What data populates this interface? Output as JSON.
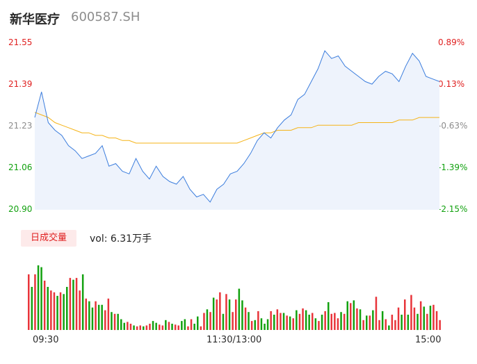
{
  "header": {
    "name": "新华医疗",
    "code": "600587.SH"
  },
  "price_axis": [
    "21.55",
    "21.39",
    "21.23",
    "21.06",
    "20.90"
  ],
  "pct_axis": [
    "0.89%",
    "0.13%",
    "-0.63%",
    "-1.39%",
    "-2.15%"
  ],
  "volume": {
    "tab_label": "日成交量",
    "vol_text": "vol: 6.31万手"
  },
  "time_axis": [
    "09:30",
    "11:30/13:00",
    "15:00"
  ],
  "colors": {
    "price_line": "#3b7ddd",
    "avg_line": "#f5b316",
    "area": "#eef3fc",
    "up": "#e8343a",
    "down": "#12a10f",
    "up_text": "#e02020",
    "down_text": "#12a10f"
  },
  "chart_data": [
    {
      "type": "line",
      "title": "",
      "ylim": [
        20.9,
        21.55
      ],
      "series": [
        {
          "values": [
            21.26,
            21.36,
            21.24,
            21.21,
            21.19,
            21.15,
            21.13,
            21.1,
            21.11,
            21.12,
            21.15,
            21.07,
            21.08,
            21.05,
            21.04,
            21.1,
            21.05,
            21.02,
            21.07,
            21.03,
            21.01,
            21.0,
            21.03,
            20.98,
            20.95,
            20.96,
            20.93,
            20.98,
            21.0,
            21.04,
            21.05,
            21.08,
            21.12,
            21.17,
            21.2,
            21.18,
            21.22,
            21.25,
            21.27,
            21.33,
            21.35,
            21.4,
            21.45,
            21.52,
            21.49,
            21.5,
            21.46,
            21.44,
            21.42,
            21.4,
            21.39,
            21.42,
            21.44,
            21.43,
            21.4,
            21.46,
            21.51,
            21.48,
            21.42,
            21.41,
            21.4
          ]
        },
        {
          "values": [
            21.28,
            21.27,
            21.26,
            21.24,
            21.23,
            21.22,
            21.21,
            21.2,
            21.2,
            21.19,
            21.19,
            21.18,
            21.18,
            21.17,
            21.17,
            21.16,
            21.16,
            21.16,
            21.16,
            21.16,
            21.16,
            21.16,
            21.16,
            21.16,
            21.16,
            21.16,
            21.16,
            21.16,
            21.16,
            21.16,
            21.16,
            21.17,
            21.18,
            21.19,
            21.2,
            21.2,
            21.21,
            21.21,
            21.21,
            21.22,
            21.22,
            21.22,
            21.23,
            21.23,
            21.23,
            21.23,
            21.23,
            21.23,
            21.24,
            21.24,
            21.24,
            21.24,
            21.24,
            21.24,
            21.25,
            21.25,
            21.25,
            21.26,
            21.26,
            21.26,
            21.26
          ]
        }
      ]
    },
    {
      "type": "bar",
      "title": "",
      "values": [
        62,
        48,
        62,
        72,
        70,
        55,
        48,
        44,
        42,
        38,
        42,
        40,
        48,
        58,
        56,
        58,
        44,
        62,
        35,
        32,
        25,
        32,
        28,
        28,
        22,
        35,
        20,
        18,
        18,
        12,
        8,
        9,
        7,
        5,
        4,
        5,
        4,
        5,
        7,
        10,
        8,
        6,
        5,
        11,
        9,
        7,
        6,
        5,
        10,
        12,
        4,
        12,
        7,
        15,
        4,
        19,
        23,
        20,
        36,
        34,
        42,
        18,
        40,
        34,
        20,
        34,
        46,
        33,
        25,
        20,
        10,
        11,
        21,
        13,
        7,
        12,
        21,
        17,
        23,
        19,
        19,
        16,
        15,
        13,
        22,
        18,
        24,
        22,
        17,
        19,
        13,
        10,
        17,
        21,
        31,
        18,
        19,
        13,
        20,
        18,
        32,
        30,
        33,
        24,
        23,
        11,
        16,
        16,
        22,
        37,
        11,
        21,
        12,
        5,
        17,
        11,
        25,
        17,
        34,
        17,
        39,
        25,
        18,
        32,
        26,
        18,
        27,
        28,
        21,
        11
      ],
      "direction": [
        1,
        0,
        1,
        0,
        0,
        1,
        0,
        1,
        1,
        0,
        1,
        0,
        0,
        1,
        0,
        1,
        1,
        0,
        1,
        0,
        0,
        1,
        0,
        0,
        1,
        1,
        0,
        1,
        0,
        0,
        0,
        1,
        1,
        0,
        1,
        1,
        0,
        1,
        1,
        0,
        0,
        1,
        1,
        0,
        1,
        0,
        1,
        1,
        0,
        0,
        1,
        1,
        0,
        0,
        1,
        1,
        0,
        1,
        0,
        1,
        1,
        0,
        1,
        0,
        1,
        1,
        0,
        0,
        1,
        0,
        1,
        0,
        1,
        0,
        0,
        0,
        1,
        0,
        1,
        1,
        0,
        1,
        0,
        1,
        0,
        1,
        1,
        0,
        0,
        1,
        0,
        1,
        0,
        1,
        0,
        1,
        1,
        1,
        0,
        1,
        0,
        1,
        0,
        1,
        0,
        1,
        0,
        1,
        0,
        1,
        1,
        0,
        1,
        0,
        1,
        1,
        1,
        0,
        1,
        0,
        1,
        1,
        0,
        1,
        0,
        1,
        0,
        1,
        1,
        1
      ]
    }
  ]
}
